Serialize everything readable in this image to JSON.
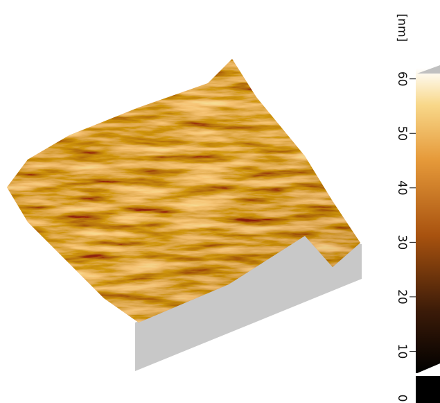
{
  "colorbar": {
    "unit_label": "[nm]",
    "range": [
      0,
      62
    ],
    "ticks": [
      0,
      10,
      20,
      30,
      40,
      50,
      60
    ]
  }
}
